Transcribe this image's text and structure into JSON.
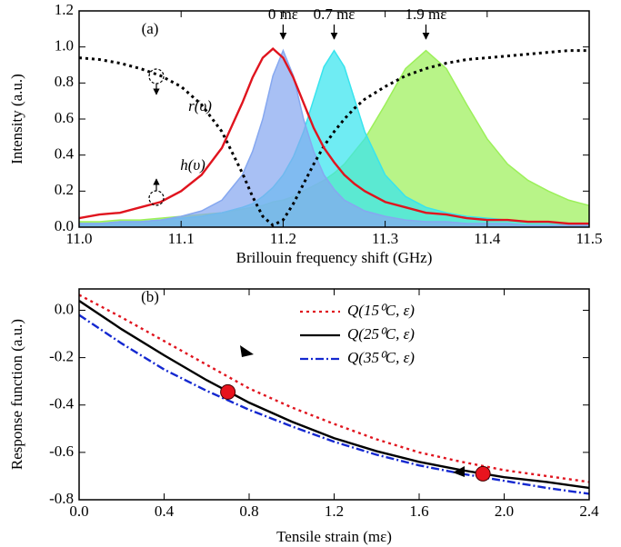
{
  "chart_data": [
    {
      "type": "line",
      "title": "(a)",
      "x_label": "Brillouin frequency shift (GHz)",
      "y_label": "Intensity (a.u.)",
      "xlim": [
        11,
        11.5
      ],
      "ylim": [
        0,
        1.2
      ],
      "xticks": [
        {
          "value": 11,
          "label": "11.0"
        },
        11.1,
        11.2,
        11.3,
        11.4,
        11.5
      ],
      "yticks": [
        {
          "value": 0,
          "label": "0.0"
        },
        0.2,
        0.4,
        0.6,
        0.8,
        {
          "value": 1,
          "label": "1.0"
        },
        1.2
      ],
      "x": [
        11,
        11.02,
        11.04,
        11.06,
        11.08,
        11.1,
        11.12,
        11.14,
        11.16,
        11.17,
        11.18,
        11.19,
        11.2,
        11.21,
        11.22,
        11.23,
        11.24,
        11.25,
        11.26,
        11.27,
        11.28,
        11.3,
        11.32,
        11.34,
        11.36,
        11.38,
        11.4,
        11.42,
        11.44,
        11.46,
        11.48,
        11.5
      ],
      "series": [
        {
          "name": "1.9 mε",
          "color": "#9cf05a",
          "fill": true,
          "values": [
            0.03,
            0.03,
            0.04,
            0.04,
            0.05,
            0.06,
            0.07,
            0.08,
            0.1,
            0.11,
            0.12,
            0.14,
            0.15,
            0.17,
            0.2,
            0.23,
            0.26,
            0.3,
            0.35,
            0.42,
            0.49,
            0.68,
            0.88,
            0.98,
            0.88,
            0.68,
            0.49,
            0.35,
            0.26,
            0.2,
            0.15,
            0.12
          ]
        },
        {
          "name": "0.7 mε",
          "color": "#38e4ee",
          "fill": true,
          "values": [
            0.02,
            0.02,
            0.03,
            0.03,
            0.04,
            0.05,
            0.06,
            0.08,
            0.11,
            0.13,
            0.17,
            0.22,
            0.29,
            0.39,
            0.53,
            0.71,
            0.89,
            0.98,
            0.89,
            0.71,
            0.53,
            0.29,
            0.17,
            0.11,
            0.08,
            0.06,
            0.05,
            0.04,
            0.03,
            0.03,
            0.02,
            0.02
          ]
        },
        {
          "name": "0 mε",
          "color": "#86a8f0",
          "fill": true,
          "values": [
            0.02,
            0.02,
            0.03,
            0.03,
            0.04,
            0.06,
            0.09,
            0.15,
            0.29,
            0.42,
            0.6,
            0.84,
            0.98,
            0.84,
            0.6,
            0.42,
            0.29,
            0.21,
            0.15,
            0.12,
            0.09,
            0.06,
            0.04,
            0.03,
            0.03,
            0.02,
            0.02,
            0.02,
            0.01,
            0.01,
            0.01,
            0.01
          ]
        },
        {
          "name": "r(υ)",
          "color": "#000000",
          "linestyle": "dotted",
          "values": [
            0.94,
            0.93,
            0.91,
            0.88,
            0.84,
            0.78,
            0.68,
            0.53,
            0.3,
            0.17,
            0.06,
            0.01,
            0.04,
            0.13,
            0.24,
            0.35,
            0.45,
            0.53,
            0.6,
            0.66,
            0.71,
            0.78,
            0.84,
            0.88,
            0.91,
            0.93,
            0.94,
            0.95,
            0.96,
            0.97,
            0.98,
            0.98
          ]
        },
        {
          "name": "h(υ)",
          "color": "#e0141e",
          "linestyle": "solid",
          "values": [
            0.05,
            0.07,
            0.08,
            0.11,
            0.14,
            0.2,
            0.29,
            0.44,
            0.69,
            0.83,
            0.94,
            0.99,
            0.94,
            0.83,
            0.69,
            0.55,
            0.44,
            0.36,
            0.29,
            0.24,
            0.2,
            0.14,
            0.11,
            0.08,
            0.07,
            0.05,
            0.04,
            0.04,
            0.03,
            0.03,
            0.02,
            0.02
          ]
        }
      ]
    },
    {
      "type": "line",
      "title": "(b)",
      "x_label": "Tensile strain (mε)",
      "y_label": "Response function (a.u.)",
      "xlim": [
        0,
        2.4
      ],
      "ylim": [
        -0.8,
        0.09
      ],
      "xticks": [
        {
          "value": 0,
          "label": "0.0"
        },
        0.4,
        0.8,
        1.2,
        1.6,
        {
          "value": 2,
          "label": "2.0"
        },
        2.4
      ],
      "yticks": [
        {
          "value": 0,
          "label": "0.0"
        },
        -0.2,
        -0.4,
        -0.6,
        -0.8
      ],
      "legend": "upper right",
      "x": [
        0,
        0.2,
        0.4,
        0.6,
        0.8,
        1,
        1.2,
        1.4,
        1.6,
        1.8,
        2,
        2.2,
        2.4
      ],
      "series": [
        {
          "name": "Q(15⁰C, ε)",
          "color": "#e0141e",
          "linestyle": "dotted",
          "values": [
            0.065,
            -0.03,
            -0.13,
            -0.23,
            -0.33,
            -0.41,
            -0.48,
            -0.545,
            -0.6,
            -0.64,
            -0.675,
            -0.7,
            -0.725
          ]
        },
        {
          "name": "Q(25⁰C, ε)",
          "color": "#000000",
          "linestyle": "solid",
          "values": [
            0.04,
            -0.08,
            -0.19,
            -0.295,
            -0.39,
            -0.47,
            -0.54,
            -0.595,
            -0.64,
            -0.675,
            -0.705,
            -0.725,
            -0.75
          ]
        },
        {
          "name": "Q(35⁰C, ε)",
          "color": "#1428d0",
          "linestyle": "dashdot",
          "values": [
            -0.02,
            -0.14,
            -0.25,
            -0.34,
            -0.42,
            -0.49,
            -0.555,
            -0.61,
            -0.655,
            -0.69,
            -0.72,
            -0.75,
            -0.775
          ]
        }
      ],
      "points": {
        "color": "#e8141e",
        "x": [
          0.7,
          1.9
        ],
        "values": [
          -0.345,
          -0.69
        ]
      }
    }
  ]
}
